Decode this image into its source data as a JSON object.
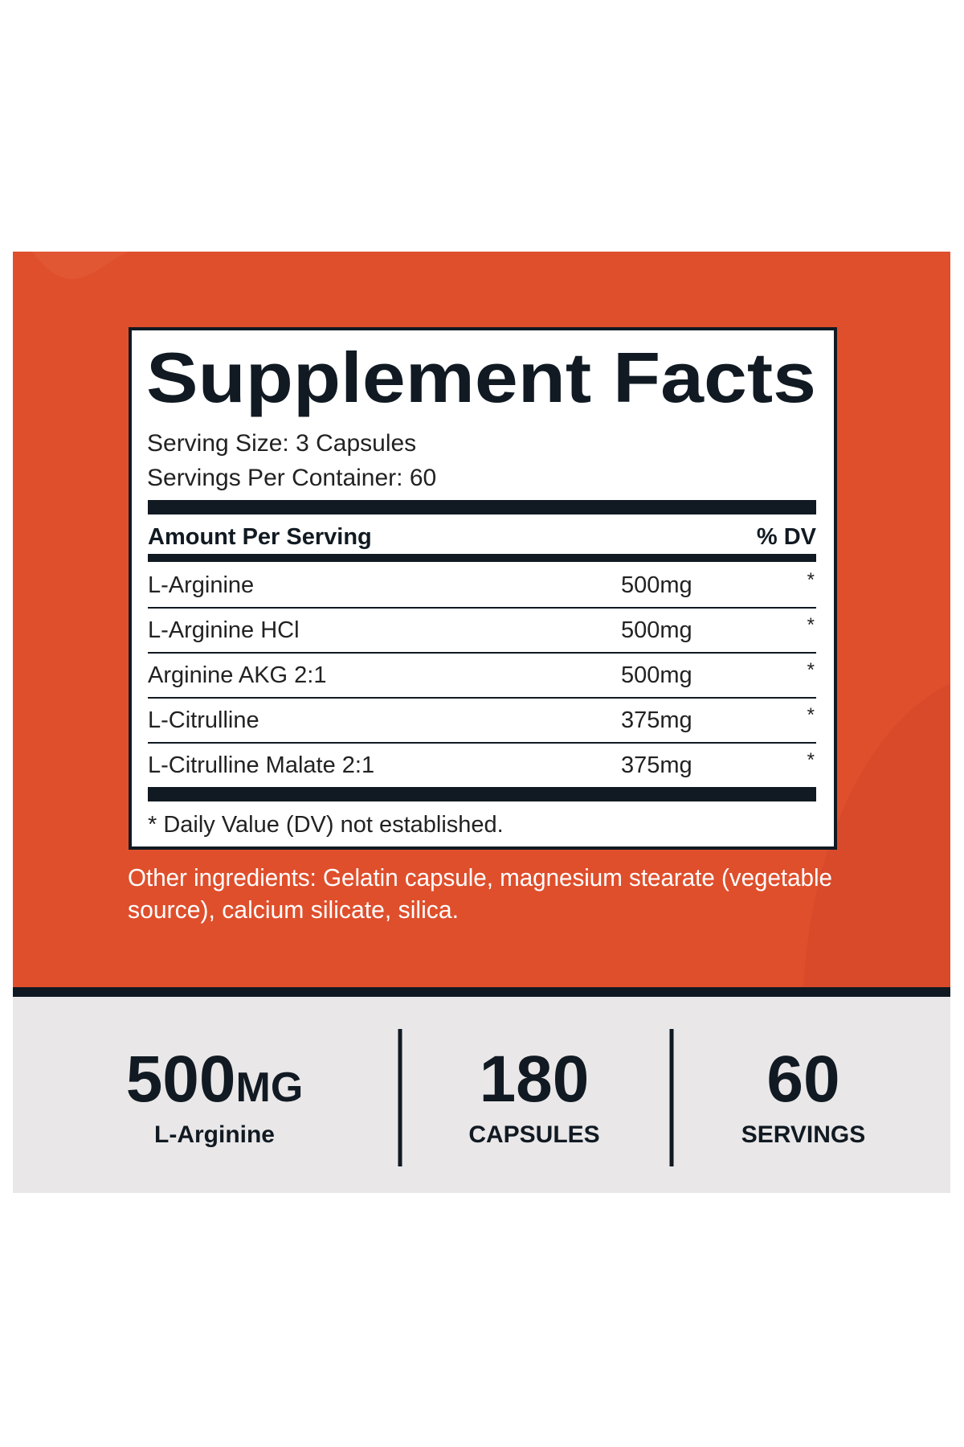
{
  "panel": {
    "title": "Supplement Facts",
    "serving_size": "Serving Size: 3 Capsules",
    "servings_per_container": "Servings Per Container: 60",
    "header": {
      "amount": "Amount Per Serving",
      "dv": "% DV"
    },
    "rows": [
      [
        "L-Arginine",
        "500mg",
        "*"
      ],
      [
        "L-Arginine HCl",
        "500mg",
        "*"
      ],
      [
        "Arginine AKG 2:1",
        "500mg",
        "*"
      ],
      [
        "L-Citrulline",
        "375mg",
        "*"
      ],
      [
        "L-Citrulline Malate 2:1",
        "375mg",
        "*"
      ]
    ],
    "footnote": "* Daily Value (DV) not established."
  },
  "other_ingredients": [
    "Other ingredients: Gelatin capsule, magnesium stearate (vegetable",
    "source), calcium silicate, silica."
  ],
  "stats": [
    {
      "value": "500",
      "unit": "MG",
      "label": "L-Arginine"
    },
    {
      "value": "180",
      "label": "CAPSULES"
    },
    {
      "value": "60",
      "label": "SERVINGS"
    }
  ]
}
